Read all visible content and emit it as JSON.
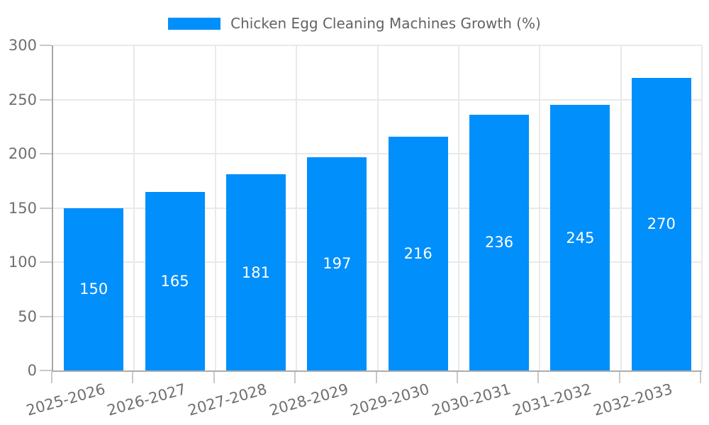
{
  "legend": {
    "label": "Chicken Egg Cleaning Machines Growth (%)"
  },
  "chart_data": {
    "type": "bar",
    "title": "Chicken Egg Cleaning Machines Growth (%)",
    "categories": [
      "2025-2026",
      "2026-2027",
      "2027-2028",
      "2028-2029",
      "2029-2030",
      "2030-2031",
      "2031-2032",
      "2032-2033"
    ],
    "values": [
      150,
      165,
      181,
      197,
      216,
      236,
      245,
      270
    ],
    "xlabel": "",
    "ylabel": "",
    "ylim": [
      0,
      300
    ],
    "yticks": [
      0,
      50,
      100,
      150,
      200,
      250,
      300
    ],
    "grid": true,
    "legend_position": "top-center",
    "bar_color": "#008FFB",
    "value_label_position": "inside-center",
    "value_label_color": "#ffffff",
    "axis_text_color": "#6f6f6f",
    "legend_text_color": "#636363",
    "gridline_color": "#e9e9e9",
    "axis_line_color": "#a6a6a6"
  }
}
